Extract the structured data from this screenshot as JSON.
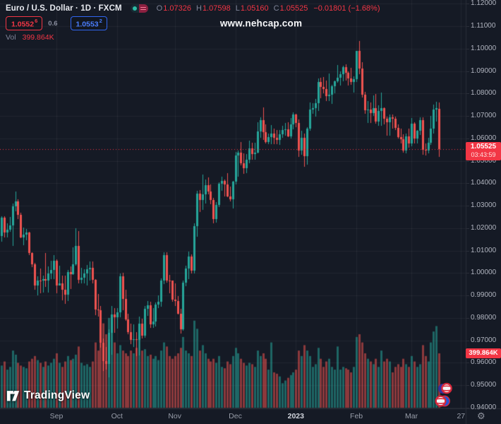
{
  "header": {
    "symbol_title": "Euro / U.S. Dollar · 1D · FXCM",
    "ohlc": {
      "o_label": "O",
      "o": "1.07326",
      "h_label": "H",
      "h": "1.07598",
      "l_label": "L",
      "l": "1.05160",
      "c_label": "C",
      "c": "1.05525",
      "change": "−0.01801 (−1.68%)"
    },
    "quote": {
      "bid": "1.0552",
      "bid_sup": "6",
      "spread": "0.6",
      "ask": "1.0553",
      "ask_sup": "2"
    },
    "vol_label": "Vol",
    "vol_value": "399.864K"
  },
  "watermark": "www.nehcap.com",
  "tags": {
    "price": "1.05525",
    "countdown": "03:43:59",
    "volume": "399.864K"
  },
  "logo": {
    "text": "TradingView"
  },
  "icons": {
    "gear": "⚙"
  },
  "chart_data": {
    "type": "candlestick",
    "title": "Euro / U.S. Dollar",
    "interval": "1D",
    "exchange": "FXCM",
    "last_price": 1.05525,
    "last_volume_k": 399.864,
    "ylim": [
      0.94,
      1.12
    ],
    "grid": true,
    "y_ticks": [
      1.12,
      1.11,
      1.1,
      1.09,
      1.08,
      1.07,
      1.06,
      1.05,
      1.04,
      1.03,
      1.02,
      1.01,
      1.0,
      0.99,
      0.98,
      0.97,
      0.96,
      0.95,
      0.94
    ],
    "x_ticks": [
      {
        "label": "Sep",
        "i": 20
      },
      {
        "label": "Oct",
        "i": 42
      },
      {
        "label": "Nov",
        "i": 63
      },
      {
        "label": "Dec",
        "i": 85
      },
      {
        "label": "2023",
        "i": 107,
        "major": true
      },
      {
        "label": "Feb",
        "i": 129
      },
      {
        "label": "Mar",
        "i": 149
      },
      {
        "label": "27",
        "i": 167
      }
    ],
    "colors": {
      "up": "#26a69a",
      "down": "#ef5350",
      "vol_up": "rgba(38,166,154,0.55)",
      "vol_down": "rgba(239,83,80,0.55)",
      "last_line": "#f23645",
      "grid": "rgba(255,255,255,0.055)",
      "border": "#2a2e39",
      "tag": "#f23645"
    },
    "candles": [
      [
        1.0164,
        1.0254,
        1.0141,
        1.0246,
        310
      ],
      [
        1.0246,
        1.0253,
        1.0158,
        1.0181,
        340
      ],
      [
        1.0181,
        1.0221,
        1.0158,
        1.0194,
        280
      ],
      [
        1.0194,
        1.025,
        1.0185,
        1.0213,
        300
      ],
      [
        1.0213,
        1.031,
        1.0122,
        1.0298,
        420
      ],
      [
        1.0298,
        1.0364,
        1.0276,
        1.032,
        390
      ],
      [
        1.032,
        1.033,
        1.0242,
        1.0258,
        330
      ],
      [
        1.0258,
        1.0268,
        1.0154,
        1.016,
        310
      ],
      [
        1.016,
        1.0203,
        1.0123,
        1.0171,
        300
      ],
      [
        1.0171,
        1.0195,
        1.0146,
        1.018,
        290
      ],
      [
        1.018,
        1.0183,
        1.008,
        1.0088,
        340
      ],
      [
        1.0088,
        1.0092,
        1.0026,
        1.004,
        360
      ],
      [
        1.004,
        1.0046,
        0.9926,
        0.9943,
        380
      ],
      [
        0.9943,
        0.9985,
        0.9901,
        0.9968,
        350
      ],
      [
        0.9968,
        1.0019,
        0.991,
        0.9966,
        330
      ],
      [
        0.9966,
        0.9988,
        0.9913,
        0.9974,
        300
      ],
      [
        0.9974,
        1.009,
        0.9938,
        0.9965,
        340
      ],
      [
        0.9965,
        1.0028,
        0.9914,
        0.9998,
        310
      ],
      [
        0.9998,
        1.0055,
        0.9972,
        1.0015,
        330
      ],
      [
        1.0015,
        1.0079,
        0.9972,
        1.0054,
        360
      ],
      [
        1.0054,
        1.0061,
        0.991,
        0.9945,
        400
      ],
      [
        0.9945,
        1.0033,
        0.9944,
        0.9953,
        330
      ],
      [
        0.9953,
        0.9987,
        0.9878,
        0.9926,
        300
      ],
      [
        0.9926,
        0.9987,
        0.9864,
        0.9903,
        340
      ],
      [
        0.9903,
        1.0015,
        0.9875,
        1.0003,
        380
      ],
      [
        1.0003,
        1.003,
        0.993,
        0.9995,
        350
      ],
      [
        0.9995,
        1.0113,
        0.9993,
        1.004,
        360
      ],
      [
        1.004,
        1.0198,
        1.0032,
        1.012,
        390
      ],
      [
        1.012,
        1.0187,
        0.9955,
        0.997,
        450
      ],
      [
        0.997,
        1.0023,
        0.9954,
        0.9979,
        330
      ],
      [
        0.9979,
        1.0017,
        0.9955,
        0.9999,
        310
      ],
      [
        0.9999,
        1.0036,
        0.9945,
        1.0016,
        320
      ],
      [
        1.0016,
        1.005,
        0.9965,
        1.0023,
        300
      ],
      [
        1.0023,
        1.0051,
        0.9954,
        0.997,
        340
      ],
      [
        0.997,
        0.9974,
        0.9812,
        0.9838,
        480
      ],
      [
        0.9838,
        0.9907,
        0.9807,
        0.9835,
        420
      ],
      [
        0.9835,
        0.9852,
        0.9667,
        0.969,
        560
      ],
      [
        0.969,
        0.9709,
        0.9565,
        0.9608,
        620
      ],
      [
        0.9608,
        0.9672,
        0.9571,
        0.9594,
        540
      ],
      [
        0.9594,
        0.975,
        0.9536,
        0.9735,
        660
      ],
      [
        0.9735,
        0.9853,
        0.9635,
        0.9815,
        560
      ],
      [
        0.9815,
        0.9844,
        0.9733,
        0.9802,
        480
      ],
      [
        0.9802,
        0.9844,
        0.9751,
        0.9826,
        400
      ],
      [
        0.9826,
        0.9999,
        0.9804,
        0.9985,
        460
      ],
      [
        0.9985,
        1.0,
        0.9835,
        0.9884,
        420
      ],
      [
        0.9884,
        0.9926,
        0.9787,
        0.9793,
        400
      ],
      [
        0.9793,
        0.9817,
        0.9726,
        0.9737,
        380
      ],
      [
        0.9737,
        0.9774,
        0.9682,
        0.9703,
        420
      ],
      [
        0.9703,
        0.9771,
        0.967,
        0.9706,
        400
      ],
      [
        0.9706,
        0.9738,
        0.9631,
        0.9702,
        440
      ],
      [
        0.9702,
        0.9807,
        0.9632,
        0.9776,
        500
      ],
      [
        0.9776,
        0.9797,
        0.9709,
        0.9721,
        420
      ],
      [
        0.9721,
        0.9852,
        0.9712,
        0.9841,
        430
      ],
      [
        0.9841,
        0.9875,
        0.981,
        0.9857,
        380
      ],
      [
        0.9857,
        0.9873,
        0.9756,
        0.9772,
        390
      ],
      [
        0.9772,
        0.9845,
        0.9755,
        0.9785,
        360
      ],
      [
        0.9785,
        0.987,
        0.9762,
        0.9861,
        380
      ],
      [
        0.9861,
        0.9899,
        0.9843,
        0.9873,
        350
      ],
      [
        0.9873,
        0.9976,
        0.985,
        0.9966,
        420
      ],
      [
        0.9966,
        1.0093,
        0.9951,
        1.008,
        480
      ],
      [
        1.008,
        1.0094,
        0.9957,
        0.9966,
        450
      ],
      [
        0.9966,
        0.9993,
        0.9909,
        0.9965,
        380
      ],
      [
        0.9965,
        0.9968,
        0.9872,
        0.9881,
        360
      ],
      [
        0.9881,
        0.9953,
        0.9853,
        0.9874,
        380
      ],
      [
        0.9874,
        0.9898,
        0.9816,
        0.9817,
        400
      ],
      [
        0.9817,
        0.984,
        0.973,
        0.9749,
        440
      ],
      [
        0.9749,
        0.9965,
        0.9742,
        0.9957,
        520
      ],
      [
        0.9957,
        1.0034,
        0.9942,
        1.002,
        420
      ],
      [
        1.002,
        1.0096,
        0.9972,
        1.0075,
        400
      ],
      [
        1.0075,
        1.0084,
        0.9997,
        1.0012,
        380
      ],
      [
        1.0012,
        1.0222,
        0.9997,
        1.021,
        640
      ],
      [
        1.021,
        1.0365,
        1.0163,
        1.0354,
        580
      ],
      [
        1.0354,
        1.0368,
        1.0271,
        1.0325,
        420
      ],
      [
        1.0325,
        1.0438,
        1.028,
        1.035,
        460
      ],
      [
        1.035,
        1.0418,
        1.031,
        1.0393,
        400
      ],
      [
        1.0393,
        1.0425,
        1.0351,
        1.0362,
        360
      ],
      [
        1.0362,
        1.0395,
        1.0305,
        1.0325,
        340
      ],
      [
        1.0325,
        1.0335,
        1.0222,
        1.0239,
        360
      ],
      [
        1.0239,
        1.0315,
        1.0226,
        1.0304,
        330
      ],
      [
        1.0304,
        1.0405,
        1.0295,
        1.0398,
        380
      ],
      [
        1.0398,
        1.0428,
        1.0365,
        1.041,
        300
      ],
      [
        1.041,
        1.0418,
        1.034,
        1.0395,
        290
      ],
      [
        1.0395,
        1.0445,
        1.0338,
        1.034,
        340
      ],
      [
        1.034,
        1.0385,
        1.0318,
        1.0328,
        320
      ],
      [
        1.0328,
        1.041,
        1.0288,
        1.0406,
        380
      ],
      [
        1.0406,
        1.0539,
        1.0394,
        1.0525,
        440
      ],
      [
        1.0525,
        1.0545,
        1.0428,
        1.0535,
        400
      ],
      [
        1.0535,
        1.0585,
        1.048,
        1.049,
        360
      ],
      [
        1.049,
        1.0532,
        1.0443,
        1.0468,
        330
      ],
      [
        1.0468,
        1.0531,
        1.0444,
        1.0506,
        310
      ],
      [
        1.0506,
        1.0589,
        1.0489,
        1.0556,
        330
      ],
      [
        1.0556,
        1.058,
        1.0504,
        1.0531,
        320
      ],
      [
        1.0531,
        1.058,
        1.0506,
        1.0536,
        300
      ],
      [
        1.0536,
        1.0673,
        1.0532,
        1.063,
        420
      ],
      [
        1.063,
        1.0695,
        1.0601,
        1.0682,
        380
      ],
      [
        1.0682,
        1.0737,
        1.0594,
        1.0627,
        400
      ],
      [
        1.0627,
        1.0663,
        1.0577,
        1.0585,
        360
      ],
      [
        1.0585,
        1.062,
        1.0573,
        1.0607,
        280
      ],
      [
        1.0607,
        1.0658,
        1.0575,
        1.0622,
        480
      ],
      [
        1.0622,
        1.0645,
        1.0573,
        1.0604,
        260
      ],
      [
        1.0604,
        1.0638,
        1.0573,
        1.0594,
        250
      ],
      [
        1.0594,
        1.0637,
        1.0572,
        1.0617,
        230
      ],
      [
        1.0617,
        1.0656,
        1.0602,
        1.0637,
        180
      ],
      [
        1.0637,
        1.067,
        1.0611,
        1.064,
        200
      ],
      [
        1.064,
        1.0672,
        1.0606,
        1.061,
        220
      ],
      [
        1.061,
        1.069,
        1.06,
        1.0661,
        240
      ],
      [
        1.0661,
        1.0715,
        1.064,
        1.0705,
        260
      ],
      [
        1.0705,
        1.071,
        1.0649,
        1.0668,
        280
      ],
      [
        1.0668,
        1.0683,
        1.0519,
        1.0546,
        420
      ],
      [
        1.0546,
        1.0635,
        1.0528,
        1.0603,
        380
      ],
      [
        1.0603,
        1.0621,
        1.0475,
        1.0521,
        460
      ],
      [
        1.0521,
        1.065,
        1.0483,
        1.0644,
        420
      ],
      [
        1.0644,
        1.076,
        1.0634,
        1.073,
        380
      ],
      [
        1.073,
        1.0758,
        1.0711,
        1.0735,
        300
      ],
      [
        1.0735,
        1.0776,
        1.0698,
        1.0756,
        320
      ],
      [
        1.0756,
        1.0868,
        1.0722,
        1.0852,
        440
      ],
      [
        1.0852,
        1.0869,
        1.078,
        1.083,
        360
      ],
      [
        1.083,
        1.0874,
        1.0802,
        1.0821,
        300
      ],
      [
        1.0821,
        1.0859,
        1.0766,
        1.0787,
        340
      ],
      [
        1.0787,
        1.0888,
        1.0766,
        1.0794,
        360
      ],
      [
        1.0794,
        1.084,
        1.0755,
        1.0832,
        300
      ],
      [
        1.0832,
        1.0858,
        1.08,
        1.0855,
        280
      ],
      [
        1.0855,
        1.0927,
        1.0848,
        1.087,
        450
      ],
      [
        1.087,
        1.0898,
        1.0835,
        1.0886,
        280
      ],
      [
        1.0886,
        1.0923,
        1.0854,
        1.0916,
        300
      ],
      [
        1.0916,
        1.0929,
        1.0858,
        1.0892,
        290
      ],
      [
        1.0892,
        1.09,
        1.0837,
        1.0868,
        280
      ],
      [
        1.0868,
        1.0913,
        1.0838,
        1.0851,
        260
      ],
      [
        1.0851,
        1.0875,
        1.0803,
        1.0863,
        300
      ],
      [
        1.0863,
        1.099,
        1.0852,
        1.0989,
        520
      ],
      [
        1.0989,
        1.1033,
        1.0886,
        1.091,
        540
      ],
      [
        1.091,
        1.094,
        1.0782,
        1.0795,
        480
      ],
      [
        1.0795,
        1.0806,
        1.071,
        1.0726,
        400
      ],
      [
        1.0726,
        1.0766,
        1.0669,
        1.0727,
        360
      ],
      [
        1.0727,
        1.076,
        1.067,
        1.0713,
        340
      ],
      [
        1.0713,
        1.079,
        1.0701,
        1.0736,
        320
      ],
      [
        1.0736,
        1.0797,
        1.0666,
        1.0676,
        360
      ],
      [
        1.0676,
        1.0748,
        1.0656,
        1.0723,
        300
      ],
      [
        1.0723,
        1.0804,
        1.0655,
        1.0736,
        420
      ],
      [
        1.0736,
        1.0738,
        1.0661,
        1.0689,
        340
      ],
      [
        1.0689,
        1.0698,
        1.0612,
        1.0673,
        360
      ],
      [
        1.0673,
        1.0706,
        1.0613,
        1.0694,
        340
      ],
      [
        1.0694,
        1.0705,
        1.0644,
        1.0686,
        260
      ],
      [
        1.0686,
        1.0697,
        1.0636,
        1.0648,
        300
      ],
      [
        1.0648,
        1.0663,
        1.0598,
        1.0605,
        320
      ],
      [
        1.0605,
        1.0645,
        1.0577,
        1.0596,
        300
      ],
      [
        1.0596,
        1.0619,
        1.0536,
        1.0546,
        360
      ],
      [
        1.0546,
        1.0621,
        1.0532,
        1.0608,
        320
      ],
      [
        1.0608,
        1.0645,
        1.0558,
        1.0577,
        300
      ],
      [
        1.0577,
        1.0691,
        1.0565,
        1.0666,
        380
      ],
      [
        1.0666,
        1.0673,
        1.0577,
        1.0598,
        340
      ],
      [
        1.0598,
        1.0637,
        1.0576,
        1.0634,
        300
      ],
      [
        1.0634,
        1.0694,
        1.0614,
        1.068,
        320
      ],
      [
        1.068,
        1.0695,
        1.0528,
        1.0548,
        460
      ],
      [
        1.0548,
        1.0578,
        1.0524,
        1.0545,
        380
      ],
      [
        1.0545,
        1.0601,
        1.0532,
        1.0581,
        340
      ],
      [
        1.0581,
        1.0701,
        1.057,
        1.0643,
        480
      ],
      [
        1.0643,
        1.0749,
        1.062,
        1.0727,
        560
      ],
      [
        1.0727,
        1.0763,
        1.0674,
        1.0734,
        600
      ],
      [
        1.07326,
        1.07598,
        1.0516,
        1.05525,
        399.864
      ]
    ]
  }
}
